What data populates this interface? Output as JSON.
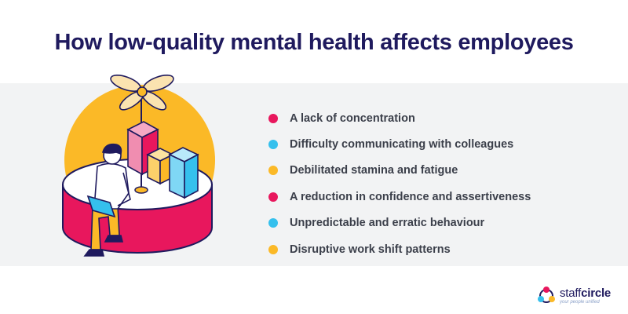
{
  "title": "How low-quality mental health affects employees",
  "items": [
    {
      "label": "A lack of concentration",
      "color": "#e8175d"
    },
    {
      "label": "Difficulty communicating with colleagues",
      "color": "#35c0ed"
    },
    {
      "label": "Debilitated stamina and fatigue",
      "color": "#fbb927"
    },
    {
      "label": "A reduction in confidence and assertiveness",
      "color": "#e8175d"
    },
    {
      "label": "Unpredictable and erratic behaviour",
      "color": "#35c0ed"
    },
    {
      "label": "Disruptive work shift patterns",
      "color": "#fbb927"
    }
  ],
  "logo": {
    "name_part1": "staff",
    "name_part2": "circle",
    "tagline": "your people unified"
  },
  "colors": {
    "navy": "#1f1a5e",
    "pink": "#e8175d",
    "blue": "#35c0ed",
    "yellow": "#fbb927",
    "band": "#f2f3f4"
  }
}
